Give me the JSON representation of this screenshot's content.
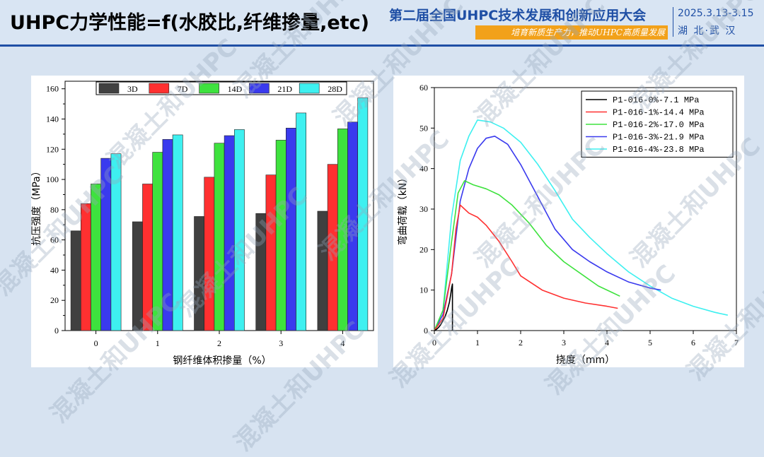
{
  "header": {
    "title": "UHPC力学性能=f(水胶比,纤维掺量,etc)",
    "conference_title": "第二届全国UHPC技术发展和创新应用大会",
    "slogan": "培育新质生产力，推动UHPC高质量发展",
    "date": "2025.3.13-3.15",
    "location": "湖 北·武 汉"
  },
  "watermark": "混凝土和UHPC",
  "colors": {
    "accent": "#1f4fa5",
    "slogan_bg": "#f2a11a",
    "s3d": "#404040",
    "s7d": "#ff3030",
    "s14d": "#3ee23e",
    "s21d": "#3a3aee",
    "s28d": "#3ef0f0"
  },
  "chart_data": [
    {
      "type": "bar",
      "title": "",
      "xlabel": "钢纤维体积掺量（%）",
      "ylabel": "抗压强度（MPa）",
      "categories": [
        "0",
        "1",
        "2",
        "3",
        "4"
      ],
      "ylim": [
        0,
        165
      ],
      "yticks": [
        "0",
        "20",
        "40",
        "60",
        "80",
        "100",
        "120",
        "140",
        "160"
      ],
      "legend_position": "top",
      "series": [
        {
          "name": "3D",
          "color": "#404040",
          "values": [
            66,
            72,
            75.5,
            77.5,
            79
          ]
        },
        {
          "name": "7D",
          "color": "#ff3030",
          "values": [
            84,
            97,
            101.5,
            103,
            110
          ]
        },
        {
          "name": "14D",
          "color": "#3ee23e",
          "values": [
            97,
            118,
            124,
            126,
            133.5
          ]
        },
        {
          "name": "21D",
          "color": "#3a3aee",
          "values": [
            114,
            126.5,
            129,
            134,
            138
          ]
        },
        {
          "name": "28D",
          "color": "#3ef0f0",
          "values": [
            117,
            129.5,
            133,
            144,
            154
          ]
        }
      ]
    },
    {
      "type": "line",
      "title": "",
      "xlabel": "挠度（mm）",
      "ylabel": "弯曲荷载（kN）",
      "xlim": [
        0,
        7
      ],
      "ylim": [
        0,
        60
      ],
      "xticks": [
        "0",
        "1",
        "2",
        "3",
        "4",
        "5",
        "6",
        "7"
      ],
      "yticks": [
        "0",
        "10",
        "20",
        "30",
        "40",
        "50",
        "60"
      ],
      "legend_position": "top-right",
      "series": [
        {
          "name": "P1-016-0%-7.1 MPa",
          "color": "#000000",
          "x": [
            0,
            0.05,
            0.1,
            0.15,
            0.2,
            0.25,
            0.3,
            0.35,
            0.38,
            0.4,
            0.42,
            0.42
          ],
          "y": [
            0,
            0.3,
            0.8,
            1.5,
            2.5,
            3.5,
            5,
            7,
            9,
            10.5,
            11.5,
            0
          ]
        },
        {
          "name": "P1-016-1%-14.4 MPa",
          "color": "#ff3030",
          "x": [
            0,
            0.2,
            0.4,
            0.5,
            0.6,
            0.7,
            0.8,
            1.0,
            1.2,
            1.5,
            1.8,
            2.0,
            2.5,
            3.0,
            3.5,
            4.0,
            4.25
          ],
          "y": [
            0,
            3,
            14,
            25,
            31,
            30,
            29,
            28,
            26,
            22,
            17,
            13.5,
            10,
            8,
            6.8,
            6,
            5.5
          ]
        },
        {
          "name": "P1-016-2%-17.0 MPa",
          "color": "#3ee23e",
          "x": [
            0,
            0.2,
            0.4,
            0.55,
            0.7,
            0.9,
            1.2,
            1.5,
            1.8,
            2.2,
            2.6,
            3.0,
            3.4,
            3.8,
            4.1,
            4.3
          ],
          "y": [
            0,
            5,
            22,
            34,
            37,
            36,
            35,
            33.5,
            31,
            26.5,
            21,
            17,
            14,
            11,
            9.5,
            8.5
          ]
        },
        {
          "name": "P1-016-3%-21.9 MPa",
          "color": "#3a3aee",
          "x": [
            0,
            0.2,
            0.4,
            0.6,
            0.8,
            1.0,
            1.2,
            1.4,
            1.7,
            2.0,
            2.4,
            2.8,
            3.2,
            3.6,
            4.0,
            4.5,
            5.0,
            5.25
          ],
          "y": [
            0,
            4,
            14,
            32,
            40,
            45,
            47.5,
            48,
            46,
            41,
            33,
            25,
            20,
            17,
            14.5,
            12,
            10.5,
            10
          ]
        },
        {
          "name": "P1-016-4%-23.8 MPa",
          "color": "#3ef0f0",
          "x": [
            0,
            0.2,
            0.4,
            0.6,
            0.8,
            1.0,
            1.3,
            1.6,
            2.0,
            2.4,
            2.8,
            3.2,
            3.6,
            4.0,
            4.5,
            5.0,
            5.5,
            6.0,
            6.5,
            6.8
          ],
          "y": [
            0,
            5,
            28,
            42,
            48,
            52,
            51.5,
            50,
            46.5,
            41,
            34.5,
            27.5,
            23,
            19,
            14.5,
            11,
            8,
            6,
            4.5,
            3.8
          ]
        }
      ]
    }
  ]
}
